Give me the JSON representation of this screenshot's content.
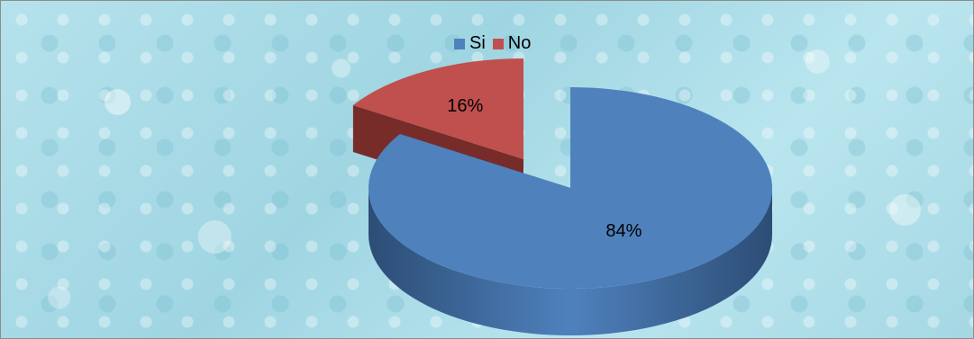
{
  "chart_data": {
    "type": "pie",
    "title": "",
    "legend_position": "top",
    "categories": [
      "Si",
      "No"
    ],
    "values": [
      84,
      16
    ],
    "data_labels": [
      "84%",
      "16%"
    ],
    "colors": [
      "#4f81bd",
      "#c0504d"
    ],
    "side_colors": [
      "#2c4d75",
      "#772c2a"
    ]
  }
}
